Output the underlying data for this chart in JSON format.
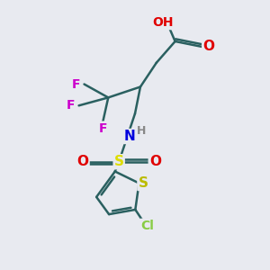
{
  "background_color": "#e8eaf0",
  "bond_color": "#2a6060",
  "bond_width": 1.8,
  "atom_colors": {
    "O": "#e00000",
    "N": "#0000dd",
    "S_sulfonyl": "#dddd00",
    "S_thienyl": "#bbbb00",
    "F": "#cc00cc",
    "Cl": "#88cc44",
    "H": "#888888",
    "C": "#2a6060"
  },
  "font_size": 11,
  "small_font": 9,
  "xlim": [
    0,
    10
  ],
  "ylim": [
    0,
    10
  ]
}
